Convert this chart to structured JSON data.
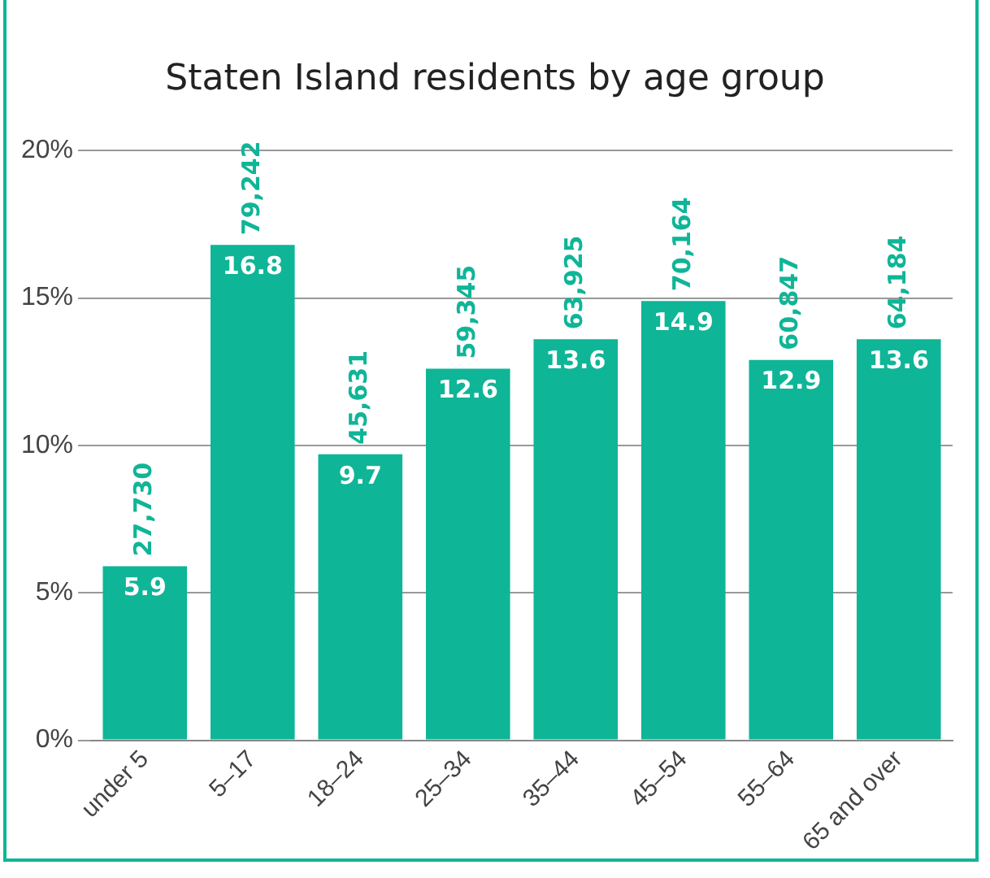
{
  "chart_data": {
    "type": "bar",
    "title": "Staten Island residents by age group",
    "categories": [
      "under 5",
      "5–17",
      "18–24",
      "25–34",
      "35–44",
      "45–54",
      "55–64",
      "65 and over"
    ],
    "values": [
      5.9,
      16.8,
      9.7,
      12.6,
      13.6,
      14.9,
      12.9,
      13.6
    ],
    "annotations": [
      {
        "text": "27,730",
        "x": "under 5",
        "y": 5.9
      },
      {
        "text": "79,242",
        "x": "5–17",
        "y": 16.8
      },
      {
        "text": "45,631",
        "x": "18–24",
        "y": 9.7
      },
      {
        "text": "59,345",
        "x": "25–34",
        "y": 12.6
      },
      {
        "text": "63,925",
        "x": "35–44",
        "y": 13.6
      },
      {
        "text": "70,164",
        "x": "45–54",
        "y": 14.9
      },
      {
        "text": "60,847",
        "x": "55–64",
        "y": 12.9
      },
      {
        "text": "64,184",
        "x": "65 and over",
        "y": 13.6
      }
    ],
    "data_labels": true,
    "color": "#0fb597",
    "ylim": [
      0,
      20
    ],
    "yticks": [
      {
        "value": 0,
        "label": "0%"
      },
      {
        "value": 5,
        "label": "5%"
      },
      {
        "value": 10,
        "label": "10%"
      },
      {
        "value": 15,
        "label": "15%"
      },
      {
        "value": 20,
        "label": "20%"
      }
    ],
    "grid": "y",
    "legend": false
  }
}
